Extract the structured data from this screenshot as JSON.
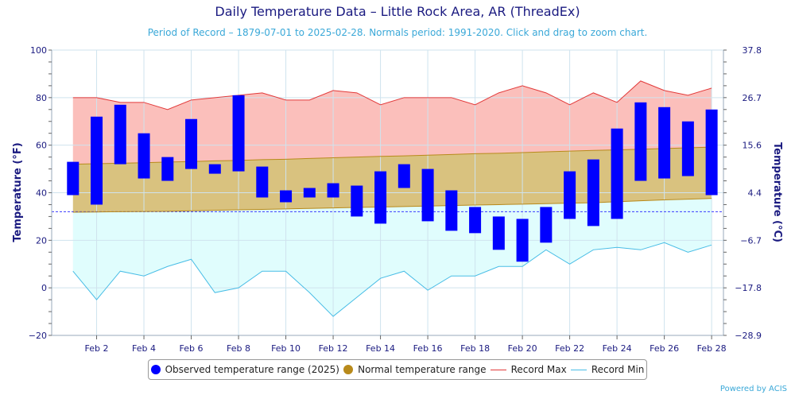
{
  "chart_data": {
    "type": "bar",
    "title": "Daily Temperature Data – Little Rock Area, AR (ThreadEx)",
    "subtitle": "Period of Record – 1879-07-01 to 2025-02-28. Normals period: 1991-2020. Click and drag to zoom chart.",
    "ylabel": "Temperature (°F)",
    "y2label": "Temperature (°C)",
    "ylim": [
      -20,
      100
    ],
    "yticks": [
      "−20",
      "0",
      "20",
      "40",
      "60",
      "80",
      "100"
    ],
    "y2ticks": [
      "−28.9",
      "−17.8",
      "−6.7",
      "4.4",
      "15.6",
      "26.7",
      "37.8"
    ],
    "xlim": [
      0.1,
      28.5
    ],
    "xtick_days": [
      2,
      4,
      6,
      8,
      10,
      12,
      14,
      16,
      18,
      20,
      22,
      24,
      26,
      28
    ],
    "xticks": [
      "Feb 2",
      "Feb 4",
      "Feb 6",
      "Feb 8",
      "Feb 10",
      "Feb 12",
      "Feb 14",
      "Feb 16",
      "Feb 18",
      "Feb 20",
      "Feb 22",
      "Feb 24",
      "Feb 26",
      "Feb 28"
    ],
    "freezing_line": 32,
    "days": [
      1,
      2,
      3,
      4,
      5,
      6,
      7,
      8,
      9,
      10,
      11,
      12,
      13,
      14,
      15,
      16,
      17,
      18,
      19,
      20,
      21,
      22,
      23,
      24,
      25,
      26,
      27,
      28
    ],
    "observed": {
      "name": "Observed temperature range (2025)",
      "high": [
        53,
        72,
        77,
        65,
        55,
        71,
        52,
        81,
        51,
        41,
        42,
        44,
        43,
        49,
        52,
        50,
        41,
        34,
        30,
        29,
        34,
        49,
        54,
        67,
        78,
        76,
        70,
        75
      ],
      "low": [
        39,
        35,
        52,
        46,
        45,
        50,
        48,
        49,
        38,
        36,
        38,
        38,
        30,
        27,
        42,
        28,
        24,
        23,
        16,
        11,
        19,
        29,
        26,
        29,
        45,
        46,
        47,
        39
      ]
    },
    "normal": {
      "name": "Normal temperature range",
      "high": [
        52,
        52.2,
        52.4,
        52.6,
        52.9,
        53.1,
        53.4,
        53.6,
        53.9,
        54.1,
        54.4,
        54.7,
        55,
        55.3,
        55.5,
        55.8,
        56.1,
        56.4,
        56.6,
        56.9,
        57.2,
        57.5,
        57.8,
        58,
        58.3,
        58.6,
        58.9,
        59.2
      ],
      "low": [
        31.8,
        31.9,
        32,
        32.1,
        32.2,
        32.4,
        32.6,
        32.8,
        33,
        33.2,
        33.4,
        33.6,
        33.8,
        34,
        34.2,
        34.4,
        34.6,
        34.8,
        35,
        35.2,
        35.4,
        35.6,
        35.8,
        36.2,
        36.6,
        37,
        37.3,
        37.6
      ]
    },
    "record_max": {
      "name": "Record Max",
      "values": [
        80,
        80,
        78,
        78,
        75,
        79,
        80,
        81,
        82,
        79,
        79,
        83,
        82,
        77,
        80,
        80,
        80,
        77,
        82,
        85,
        82,
        77,
        82,
        78,
        87,
        83,
        81,
        84
      ]
    },
    "record_min": {
      "name": "Record Min",
      "values": [
        7,
        -5,
        7,
        5,
        9,
        12,
        -2,
        0,
        7,
        7,
        -2,
        -12,
        -4,
        4,
        7,
        -1,
        5,
        5,
        9,
        9,
        16,
        10,
        16,
        17,
        16,
        19,
        15,
        18
      ]
    },
    "colors": {
      "observed": "#0000ff",
      "normal_fill": "#d9c27f",
      "normal_line": "#b88a1b",
      "record_max_fill": "#fbbfbb",
      "record_max_line": "#e23a3a",
      "record_min_fill": "#e0fdfd",
      "record_min_line": "#48bde6",
      "grid": "#cfe3ee",
      "axis_text": "#1a1a80"
    }
  },
  "legend": {
    "observed": "Observed temperature range (2025)",
    "normal": "Normal temperature range",
    "record_max": "Record Max",
    "record_min": "Record Min"
  },
  "credit": "Powered by ACIS"
}
